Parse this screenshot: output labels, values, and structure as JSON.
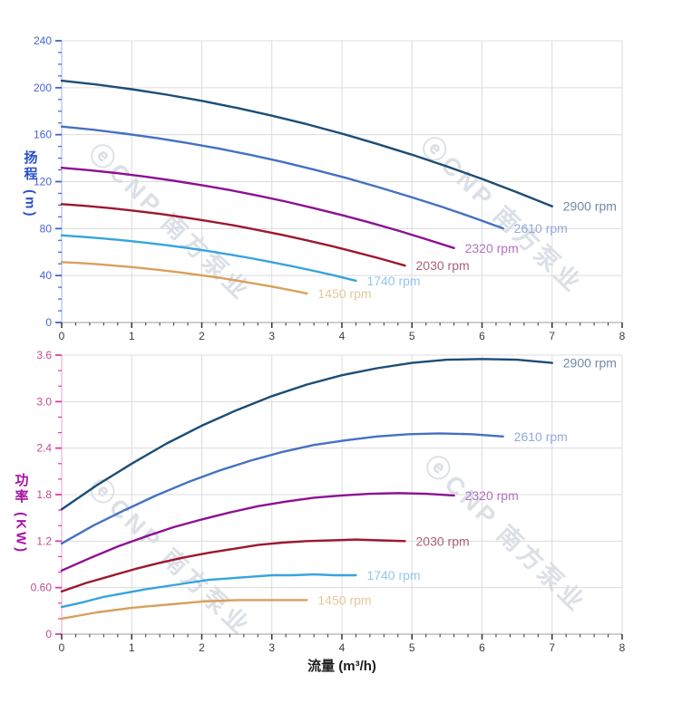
{
  "watermark": {
    "text": "ⓔCNP 南方泵业",
    "color": "rgba(184,191,206,0.5)"
  },
  "chart_data": [
    {
      "type": "line",
      "id": "head-vs-flow",
      "title": "",
      "ylabel": "扬程 (m)",
      "xlabel": "",
      "xlim": [
        0,
        8
      ],
      "ylim": [
        0,
        240
      ],
      "grid": true,
      "legend_position": "curve-end-labels",
      "x_ticks": [
        0,
        1,
        2,
        3,
        4,
        5,
        6,
        7,
        8
      ],
      "x_tick_labels": [
        "0",
        "1",
        "2",
        "3",
        "4",
        "5",
        "6",
        "7",
        "8"
      ],
      "x_minor_step": 0.2,
      "y_ticks": [
        0,
        40,
        80,
        120,
        160,
        200,
        240
      ],
      "y_tick_labels": [
        "0",
        "40",
        "80",
        "120",
        "160",
        "200",
        "240"
      ],
      "y_minor_step": 10,
      "axis_colors": {
        "line": "#b7c3ea",
        "tick": "#3f62d4",
        "tick_label": "#4a64d4",
        "title": "#2b50c8"
      },
      "x_axis_colors": {
        "line": "#b0b0b0",
        "tick": "#333333",
        "tick_label": "#3c3c3c"
      },
      "series": [
        {
          "name": "2900 rpm",
          "rpm": 2900,
          "color": "#1c4d76",
          "label_color": "#7189a8",
          "points": [
            [
              0,
              206
            ],
            [
              0.5,
              202.7
            ],
            [
              1,
              198.7
            ],
            [
              1.5,
              194.1
            ],
            [
              2,
              188.8
            ],
            [
              2.5,
              182.8
            ],
            [
              3,
              176.2
            ],
            [
              3.5,
              168.9
            ],
            [
              4,
              160.9
            ],
            [
              4.5,
              152.2
            ],
            [
              5,
              142.9
            ],
            [
              5.5,
              132.9
            ],
            [
              6,
              122.3
            ],
            [
              6.5,
              111.0
            ],
            [
              7,
              99.0
            ]
          ]
        },
        {
          "name": "2610 rpm",
          "rpm": 2610,
          "color": "#4571c2",
          "label_color": "#93a9dc",
          "points": [
            [
              0,
              166.9
            ],
            [
              0.45,
              164.2
            ],
            [
              0.9,
              160.9
            ],
            [
              1.35,
              157.2
            ],
            [
              1.8,
              152.9
            ],
            [
              2.25,
              148.1
            ],
            [
              2.7,
              142.7
            ],
            [
              3.15,
              136.8
            ],
            [
              3.6,
              130.3
            ],
            [
              4.05,
              123.3
            ],
            [
              4.5,
              115.7
            ],
            [
              4.95,
              107.6
            ],
            [
              5.4,
              99.1
            ],
            [
              5.85,
              89.9
            ],
            [
              6.3,
              80.2
            ]
          ]
        },
        {
          "name": "2320 rpm",
          "rpm": 2320,
          "color": "#8d1092",
          "label_color": "#b472bb",
          "points": [
            [
              0,
              131.8
            ],
            [
              0.4,
              129.7
            ],
            [
              0.8,
              127.2
            ],
            [
              1.2,
              124.2
            ],
            [
              1.6,
              120.8
            ],
            [
              2,
              117.0
            ],
            [
              2.4,
              112.8
            ],
            [
              2.8,
              108.1
            ],
            [
              3.2,
              103.0
            ],
            [
              3.6,
              97.4
            ],
            [
              4,
              91.5
            ],
            [
              4.4,
              85.1
            ],
            [
              4.8,
              78.3
            ],
            [
              5.2,
              71.0
            ],
            [
              5.6,
              63.4
            ]
          ]
        },
        {
          "name": "2030 rpm",
          "rpm": 2030,
          "color": "#9c1830",
          "label_color": "#aa6276",
          "points": [
            [
              0,
              100.9
            ],
            [
              0.35,
              99.3
            ],
            [
              0.7,
              97.4
            ],
            [
              1.05,
              95.1
            ],
            [
              1.4,
              92.5
            ],
            [
              1.75,
              89.6
            ],
            [
              2.1,
              86.3
            ],
            [
              2.45,
              82.8
            ],
            [
              2.8,
              78.8
            ],
            [
              3.15,
              74.6
            ],
            [
              3.5,
              70.0
            ],
            [
              3.85,
              65.1
            ],
            [
              4.2,
              59.9
            ],
            [
              4.55,
              54.4
            ],
            [
              4.9,
              48.5
            ]
          ]
        },
        {
          "name": "1740 rpm",
          "rpm": 1740,
          "color": "#35a4dd",
          "label_color": "#92c8eb",
          "points": [
            [
              0,
              74.2
            ],
            [
              0.3,
              73.0
            ],
            [
              0.6,
              71.5
            ],
            [
              0.9,
              69.9
            ],
            [
              1.2,
              68.0
            ],
            [
              1.5,
              65.8
            ],
            [
              1.8,
              63.4
            ],
            [
              2.1,
              60.8
            ],
            [
              2.4,
              57.9
            ],
            [
              2.7,
              54.8
            ],
            [
              3,
              51.4
            ],
            [
              3.3,
              47.8
            ],
            [
              3.6,
              44.0
            ],
            [
              3.9,
              40.0
            ],
            [
              4.2,
              35.6
            ]
          ]
        },
        {
          "name": "1450 rpm",
          "rpm": 1450,
          "color": "#d8a05a",
          "label_color": "#e5c79d",
          "points": [
            [
              0,
              51.5
            ],
            [
              0.25,
              50.7
            ],
            [
              0.5,
              49.7
            ],
            [
              0.75,
              48.5
            ],
            [
              1,
              47.2
            ],
            [
              1.25,
              45.7
            ],
            [
              1.5,
              44.1
            ],
            [
              1.75,
              42.2
            ],
            [
              2,
              40.2
            ],
            [
              2.25,
              38.1
            ],
            [
              2.5,
              35.7
            ],
            [
              2.75,
              33.2
            ],
            [
              3,
              30.6
            ],
            [
              3.25,
              27.8
            ],
            [
              3.5,
              24.8
            ]
          ]
        }
      ]
    },
    {
      "type": "line",
      "id": "power-vs-flow",
      "title": "",
      "ylabel": "功率 (KW)",
      "xlabel": "流量 (m³/h)",
      "xlim": [
        0,
        8
      ],
      "ylim": [
        0,
        3.6
      ],
      "grid": true,
      "legend_position": "curve-end-labels",
      "x_ticks": [
        0,
        1,
        2,
        3,
        4,
        5,
        6,
        7,
        8
      ],
      "x_tick_labels": [
        "0",
        "1",
        "2",
        "3",
        "4",
        "5",
        "6",
        "7",
        "8"
      ],
      "x_minor_step": 0.2,
      "y_ticks": [
        0,
        0.6,
        1.2,
        1.8,
        2.4,
        3.0,
        3.6
      ],
      "y_tick_labels": [
        "0",
        "0.60",
        "1.2",
        "1.8",
        "2.4",
        "3.0",
        "3.6"
      ],
      "y_minor_step": 0.2,
      "axis_colors": {
        "line": "#eebad9",
        "tick": "#e23ba2",
        "tick_label": "#c34897",
        "title": "#a613a2"
      },
      "x_axis_colors": {
        "line": "#b0b0b0",
        "tick": "#333333",
        "tick_label": "#3c3c3c"
      },
      "series": [
        {
          "name": "2900 rpm",
          "rpm": 2900,
          "color": "#1c4d76",
          "label_color": "#7189a8",
          "points": [
            [
              0,
              1.61
            ],
            [
              0.5,
              1.92
            ],
            [
              1,
              2.2
            ],
            [
              1.5,
              2.46
            ],
            [
              2,
              2.69
            ],
            [
              2.5,
              2.89
            ],
            [
              3,
              3.07
            ],
            [
              3.5,
              3.22
            ],
            [
              4,
              3.34
            ],
            [
              4.5,
              3.43
            ],
            [
              5,
              3.5
            ],
            [
              5.5,
              3.54
            ],
            [
              6,
              3.55
            ],
            [
              6.5,
              3.54
            ],
            [
              7,
              3.5
            ]
          ]
        },
        {
          "name": "2610 rpm",
          "rpm": 2610,
          "color": "#4571c2",
          "label_color": "#93a9dc",
          "points": [
            [
              0,
              1.17
            ],
            [
              0.45,
              1.4
            ],
            [
              0.9,
              1.6
            ],
            [
              1.35,
              1.79
            ],
            [
              1.8,
              1.96
            ],
            [
              2.25,
              2.11
            ],
            [
              2.7,
              2.24
            ],
            [
              3.15,
              2.35
            ],
            [
              3.6,
              2.44
            ],
            [
              4.05,
              2.5
            ],
            [
              4.5,
              2.55
            ],
            [
              4.95,
              2.58
            ],
            [
              5.4,
              2.59
            ],
            [
              5.85,
              2.58
            ],
            [
              6.3,
              2.55
            ]
          ]
        },
        {
          "name": "2320 rpm",
          "rpm": 2320,
          "color": "#8d1092",
          "label_color": "#b472bb",
          "points": [
            [
              0,
              0.82
            ],
            [
              0.4,
              0.98
            ],
            [
              0.8,
              1.13
            ],
            [
              1.2,
              1.26
            ],
            [
              1.6,
              1.38
            ],
            [
              2,
              1.48
            ],
            [
              2.4,
              1.57
            ],
            [
              2.8,
              1.65
            ],
            [
              3.2,
              1.71
            ],
            [
              3.6,
              1.76
            ],
            [
              4,
              1.79
            ],
            [
              4.4,
              1.81
            ],
            [
              4.8,
              1.82
            ],
            [
              5.2,
              1.81
            ],
            [
              5.6,
              1.79
            ]
          ]
        },
        {
          "name": "2030 rpm",
          "rpm": 2030,
          "color": "#9c1830",
          "label_color": "#aa6276",
          "points": [
            [
              0,
              0.55
            ],
            [
              0.35,
              0.66
            ],
            [
              0.7,
              0.75
            ],
            [
              1.05,
              0.84
            ],
            [
              1.4,
              0.92
            ],
            [
              1.75,
              0.99
            ],
            [
              2.1,
              1.05
            ],
            [
              2.45,
              1.1
            ],
            [
              2.8,
              1.15
            ],
            [
              3.15,
              1.18
            ],
            [
              3.5,
              1.2
            ],
            [
              3.85,
              1.21
            ],
            [
              4.2,
              1.22
            ],
            [
              4.55,
              1.21
            ],
            [
              4.9,
              1.2
            ]
          ]
        },
        {
          "name": "1740 rpm",
          "rpm": 1740,
          "color": "#35a4dd",
          "label_color": "#92c8eb",
          "points": [
            [
              0,
              0.35
            ],
            [
              0.3,
              0.41
            ],
            [
              0.6,
              0.48
            ],
            [
              0.9,
              0.53
            ],
            [
              1.2,
              0.58
            ],
            [
              1.5,
              0.62
            ],
            [
              1.8,
              0.66
            ],
            [
              2.1,
              0.7
            ],
            [
              2.4,
              0.72
            ],
            [
              2.7,
              0.74
            ],
            [
              3,
              0.76
            ],
            [
              3.3,
              0.76
            ],
            [
              3.6,
              0.77
            ],
            [
              3.9,
              0.76
            ],
            [
              4.2,
              0.76
            ]
          ]
        },
        {
          "name": "1450 rpm",
          "rpm": 1450,
          "color": "#d8a05a",
          "label_color": "#e5c79d",
          "points": [
            [
              0,
              0.2
            ],
            [
              0.25,
              0.24
            ],
            [
              0.5,
              0.28
            ],
            [
              0.75,
              0.31
            ],
            [
              1,
              0.34
            ],
            [
              1.25,
              0.36
            ],
            [
              1.5,
              0.38
            ],
            [
              1.75,
              0.4
            ],
            [
              2,
              0.42
            ],
            [
              2.25,
              0.43
            ],
            [
              2.5,
              0.44
            ],
            [
              2.75,
              0.44
            ],
            [
              3,
              0.44
            ],
            [
              3.25,
              0.44
            ],
            [
              3.5,
              0.44
            ]
          ]
        }
      ]
    }
  ]
}
